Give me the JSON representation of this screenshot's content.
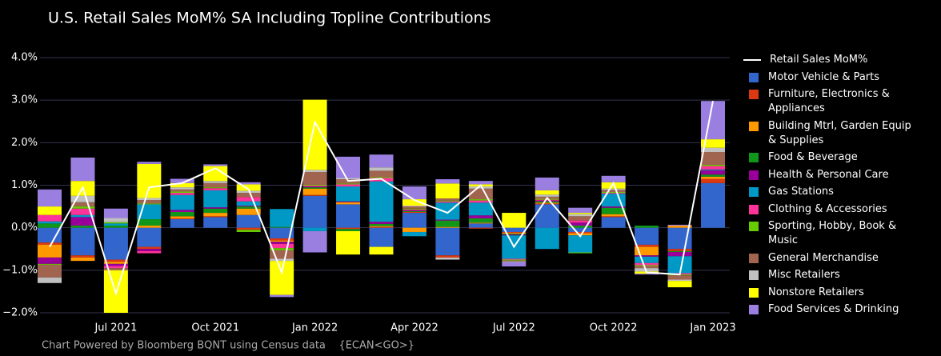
{
  "chart_data": {
    "type": "bar",
    "title": "U.S. Retail Sales MoM% SA Including Topline Contributions",
    "footer": "Chart Powered by Bloomberg BQNT using Census data    {ECAN<GO>}",
    "x": [
      "2021-05",
      "2021-06",
      "2021-07",
      "2021-08",
      "2021-09",
      "2021-10",
      "2021-11",
      "2021-12",
      "2022-01",
      "2022-02",
      "2022-03",
      "2022-04",
      "2022-05",
      "2022-06",
      "2022-07",
      "2022-08",
      "2022-09",
      "2022-10",
      "2022-11",
      "2022-12",
      "2023-01"
    ],
    "xticks": [
      {
        "value": "2021-07",
        "label": "Jul 2021"
      },
      {
        "value": "2021-10",
        "label": "Oct 2021"
      },
      {
        "value": "2022-01",
        "label": "Jan 2022"
      },
      {
        "value": "2022-04",
        "label": "Apr 2022"
      },
      {
        "value": "2022-07",
        "label": "Jul 2022"
      },
      {
        "value": "2022-10",
        "label": "Oct 2022"
      },
      {
        "value": "2023-01",
        "label": "Jan 2023"
      }
    ],
    "ylim": [
      -2,
      4
    ],
    "yticks": [
      {
        "value": -2,
        "label": "−2.0%"
      },
      {
        "value": -1,
        "label": "−1.0%"
      },
      {
        "value": 0,
        "label": "0.0%"
      },
      {
        "value": 1,
        "label": "1.0%"
      },
      {
        "value": 2,
        "label": "2.0%"
      },
      {
        "value": 3,
        "label": "3.0%"
      },
      {
        "value": 4,
        "label": "4.0%"
      }
    ],
    "grid": true,
    "line": {
      "name": "Retail Sales MoM%",
      "color": "#ffffff",
      "values": [
        -0.45,
        0.95,
        -1.55,
        0.95,
        1.05,
        1.4,
        0.9,
        -1.05,
        2.48,
        1.1,
        1.15,
        0.65,
        0.35,
        1.0,
        -0.45,
        0.7,
        -0.2,
        1.05,
        -1.05,
        -1.1,
        2.98
      ]
    },
    "series": [
      {
        "name": "Motor Vehicle & Parts",
        "color": "#3366cc",
        "values": [
          -0.35,
          -0.65,
          -0.75,
          -0.45,
          0.2,
          0.25,
          0.3,
          -0.25,
          0.75,
          0.55,
          -0.45,
          0.35,
          -0.65,
          0.1,
          -0.1,
          0.55,
          -0.1,
          0.25,
          -0.4,
          -0.5,
          1.05
        ]
      },
      {
        "name": "Furniture, Electronics & Appliances",
        "color": "#dc3912",
        "values": [
          -0.05,
          -0.05,
          -0.05,
          -0.05,
          0.02,
          0.02,
          -0.05,
          -0.05,
          0.02,
          -0.03,
          0.02,
          0.02,
          -0.05,
          -0.02,
          -0.02,
          0.02,
          -0.03,
          0.02,
          -0.05,
          -0.05,
          0.1
        ]
      },
      {
        "name": "Building Mtrl, Garden Equip & Supplies",
        "color": "#ff9900",
        "values": [
          -0.3,
          -0.08,
          -0.05,
          0.05,
          0.05,
          0.08,
          0.15,
          -0.03,
          0.15,
          0.05,
          0.02,
          -0.1,
          0.02,
          0.02,
          -0.02,
          0.02,
          -0.05,
          0.05,
          -0.2,
          0.05,
          0.05
        ]
      },
      {
        "name": "Food & Beverage",
        "color": "#109618",
        "values": [
          0.1,
          0.05,
          0.05,
          0.15,
          0.1,
          0.1,
          0.05,
          0.02,
          0.03,
          -0.05,
          0.05,
          0.02,
          0.15,
          0.1,
          -0.02,
          0.03,
          0.05,
          0.15,
          0.05,
          -0.02,
          0.05
        ]
      },
      {
        "name": "Health & Personal Care",
        "color": "#990099",
        "values": [
          -0.15,
          0.2,
          -0.05,
          -0.05,
          0.05,
          0.03,
          0.02,
          -0.05,
          0.02,
          0.02,
          0.05,
          0.02,
          0.02,
          0.07,
          -0.02,
          0.02,
          0.07,
          0.03,
          -0.03,
          -0.1,
          0.1
        ]
      },
      {
        "name": "Gas Stations",
        "color": "#0099c6",
        "values": [
          0.05,
          0.05,
          0.05,
          0.35,
          0.35,
          0.4,
          0.1,
          0.42,
          -0.08,
          0.35,
          0.95,
          -0.1,
          0.4,
          0.3,
          -0.55,
          -0.5,
          -0.4,
          0.3,
          -0.15,
          -0.4,
          0.02
        ]
      },
      {
        "name": "Clothing & Accessories",
        "color": "#ff3399",
        "values": [
          0.15,
          0.15,
          -0.05,
          -0.05,
          0.05,
          0.05,
          0.1,
          -0.1,
          0.02,
          0.05,
          0.08,
          0.02,
          0.03,
          0.05,
          -0.02,
          0.02,
          0.05,
          0.02,
          -0.05,
          -0.03,
          0.08
        ]
      },
      {
        "name": "Sporting, Hobby, Book & Music",
        "color": "#66cc00",
        "values": [
          -0.02,
          0.05,
          0.03,
          0.02,
          0.03,
          0.02,
          -0.05,
          -0.05,
          0.02,
          0.02,
          0.02,
          0.02,
          0.02,
          0.03,
          -0.02,
          0.02,
          -0.02,
          0.02,
          -0.02,
          -0.02,
          0.03
        ]
      },
      {
        "name": "General Merchandise",
        "color": "#a0644f",
        "values": [
          -0.3,
          0.1,
          -0.05,
          0.08,
          0.05,
          0.1,
          0.1,
          -0.2,
          0.3,
          0.1,
          0.15,
          0.05,
          0.05,
          0.25,
          -0.02,
          0.05,
          0.1,
          0.05,
          -0.05,
          -0.1,
          0.3
        ]
      },
      {
        "name": "Misc Retailers",
        "color": "#c0c0c0",
        "values": [
          -0.13,
          0.15,
          0.1,
          0.05,
          0.05,
          0.05,
          0.05,
          -0.05,
          0.05,
          0.03,
          0.08,
          0.02,
          -0.05,
          0.05,
          -0.02,
          0.05,
          0.05,
          0.03,
          -0.08,
          -0.03,
          0.1
        ]
      },
      {
        "name": "Nonstore Retailers",
        "color": "#ffff00",
        "values": [
          0.2,
          0.35,
          -1.0,
          0.8,
          0.1,
          0.35,
          0.15,
          -0.8,
          1.65,
          -0.55,
          -0.18,
          0.15,
          0.35,
          0.05,
          0.35,
          0.1,
          0.03,
          0.15,
          -0.05,
          -0.15,
          0.2
        ]
      },
      {
        "name": "Food Services & Drinking",
        "color": "#9a7fe0",
        "values": [
          0.4,
          0.55,
          0.22,
          0.05,
          0.1,
          0.04,
          0.05,
          -0.05,
          -0.5,
          0.5,
          0.3,
          0.3,
          0.1,
          0.08,
          -0.1,
          0.3,
          0.12,
          0.15,
          -0.02,
          0.02,
          0.9
        ]
      }
    ]
  }
}
